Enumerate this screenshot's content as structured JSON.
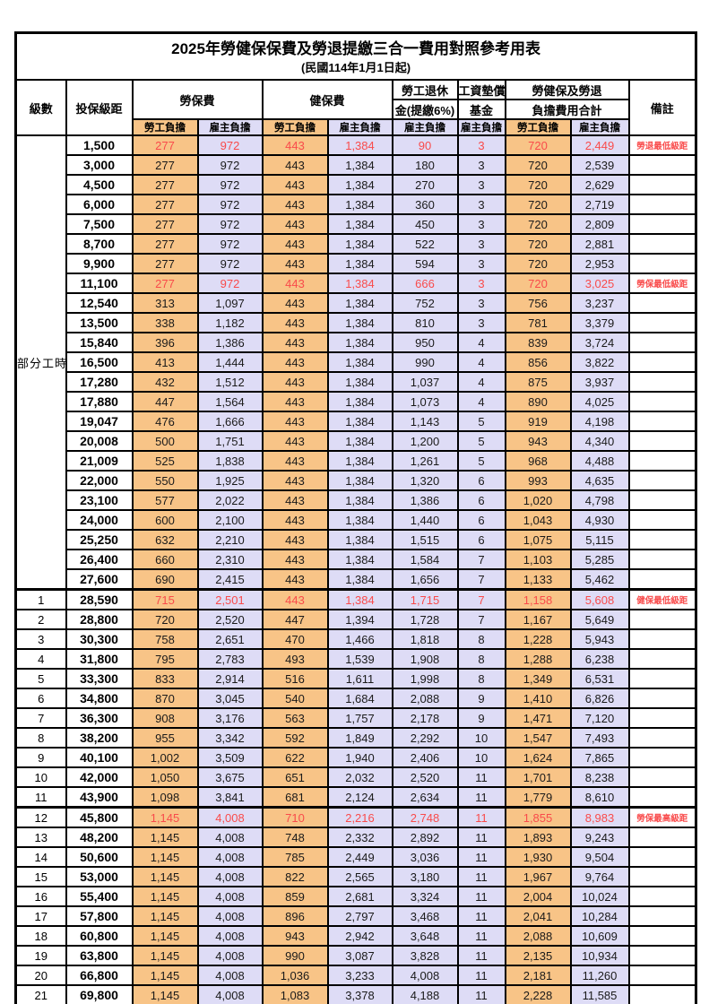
{
  "title": "2025年勞健保保費及勞退提繳三合一費用對照參考用表",
  "subtitle": "(民國114年1月1日起)",
  "header": {
    "level": "級數",
    "bracket": "投保級距",
    "labor": "勞保費",
    "health": "健保費",
    "pension_line1": "勞工退休",
    "pension_line2": "金(提繳6%)",
    "wage_fund_line1": "工資墊償",
    "wage_fund_line2": "基金",
    "total_line1": "勞健保及勞退",
    "total_line2": "負擔費用合計",
    "remark": "備註",
    "employee": "勞工負擔",
    "employer": "雇主負擔"
  },
  "part_time": {
    "label": "部分工時",
    "rowspan": 23
  },
  "colors": {
    "employee_bg": "#F8C487",
    "employer_bg": "#DEDCF6",
    "highlight_red": "#F94B4B",
    "border": "#000000"
  },
  "rows": [
    {
      "level": "",
      "salary": "1,500",
      "values": [
        "277",
        "972",
        "443",
        "1,384",
        "90",
        "3",
        "720",
        "2,449"
      ],
      "note": "勞退最低級距",
      "red": true,
      "thick": false
    },
    {
      "level": "",
      "salary": "3,000",
      "values": [
        "277",
        "972",
        "443",
        "1,384",
        "180",
        "3",
        "720",
        "2,539"
      ],
      "note": "",
      "red": false,
      "thick": false
    },
    {
      "level": "",
      "salary": "4,500",
      "values": [
        "277",
        "972",
        "443",
        "1,384",
        "270",
        "3",
        "720",
        "2,629"
      ],
      "note": "",
      "red": false,
      "thick": false
    },
    {
      "level": "",
      "salary": "6,000",
      "values": [
        "277",
        "972",
        "443",
        "1,384",
        "360",
        "3",
        "720",
        "2,719"
      ],
      "note": "",
      "red": false,
      "thick": false
    },
    {
      "level": "",
      "salary": "7,500",
      "values": [
        "277",
        "972",
        "443",
        "1,384",
        "450",
        "3",
        "720",
        "2,809"
      ],
      "note": "",
      "red": false,
      "thick": false
    },
    {
      "level": "",
      "salary": "8,700",
      "values": [
        "277",
        "972",
        "443",
        "1,384",
        "522",
        "3",
        "720",
        "2,881"
      ],
      "note": "",
      "red": false,
      "thick": false
    },
    {
      "level": "",
      "salary": "9,900",
      "values": [
        "277",
        "972",
        "443",
        "1,384",
        "594",
        "3",
        "720",
        "2,953"
      ],
      "note": "",
      "red": false,
      "thick": false
    },
    {
      "level": "",
      "salary": "11,100",
      "values": [
        "277",
        "972",
        "443",
        "1,384",
        "666",
        "3",
        "720",
        "3,025"
      ],
      "note": "勞保最低級距",
      "red": true,
      "thick": false
    },
    {
      "level": "",
      "salary": "12,540",
      "values": [
        "313",
        "1,097",
        "443",
        "1,384",
        "752",
        "3",
        "756",
        "3,237"
      ],
      "note": "",
      "red": false,
      "thick": false
    },
    {
      "level": "",
      "salary": "13,500",
      "values": [
        "338",
        "1,182",
        "443",
        "1,384",
        "810",
        "3",
        "781",
        "3,379"
      ],
      "note": "",
      "red": false,
      "thick": false
    },
    {
      "level": "",
      "salary": "15,840",
      "values": [
        "396",
        "1,386",
        "443",
        "1,384",
        "950",
        "4",
        "839",
        "3,724"
      ],
      "note": "",
      "red": false,
      "thick": false
    },
    {
      "level": "",
      "salary": "16,500",
      "values": [
        "413",
        "1,444",
        "443",
        "1,384",
        "990",
        "4",
        "856",
        "3,822"
      ],
      "note": "",
      "red": false,
      "thick": false
    },
    {
      "level": "",
      "salary": "17,280",
      "values": [
        "432",
        "1,512",
        "443",
        "1,384",
        "1,037",
        "4",
        "875",
        "3,937"
      ],
      "note": "",
      "red": false,
      "thick": false
    },
    {
      "level": "",
      "salary": "17,880",
      "values": [
        "447",
        "1,564",
        "443",
        "1,384",
        "1,073",
        "4",
        "890",
        "4,025"
      ],
      "note": "",
      "red": false,
      "thick": false
    },
    {
      "level": "",
      "salary": "19,047",
      "values": [
        "476",
        "1,666",
        "443",
        "1,384",
        "1,143",
        "5",
        "919",
        "4,198"
      ],
      "note": "",
      "red": false,
      "thick": false
    },
    {
      "level": "",
      "salary": "20,008",
      "values": [
        "500",
        "1,751",
        "443",
        "1,384",
        "1,200",
        "5",
        "943",
        "4,340"
      ],
      "note": "",
      "red": false,
      "thick": false
    },
    {
      "level": "",
      "salary": "21,009",
      "values": [
        "525",
        "1,838",
        "443",
        "1,384",
        "1,261",
        "5",
        "968",
        "4,488"
      ],
      "note": "",
      "red": false,
      "thick": false
    },
    {
      "level": "",
      "salary": "22,000",
      "values": [
        "550",
        "1,925",
        "443",
        "1,384",
        "1,320",
        "6",
        "993",
        "4,635"
      ],
      "note": "",
      "red": false,
      "thick": false
    },
    {
      "level": "",
      "salary": "23,100",
      "values": [
        "577",
        "2,022",
        "443",
        "1,384",
        "1,386",
        "6",
        "1,020",
        "4,798"
      ],
      "note": "",
      "red": false,
      "thick": false
    },
    {
      "level": "",
      "salary": "24,000",
      "values": [
        "600",
        "2,100",
        "443",
        "1,384",
        "1,440",
        "6",
        "1,043",
        "4,930"
      ],
      "note": "",
      "red": false,
      "thick": false
    },
    {
      "level": "",
      "salary": "25,250",
      "values": [
        "632",
        "2,210",
        "443",
        "1,384",
        "1,515",
        "6",
        "1,075",
        "5,115"
      ],
      "note": "",
      "red": false,
      "thick": false
    },
    {
      "level": "",
      "salary": "26,400",
      "values": [
        "660",
        "2,310",
        "443",
        "1,384",
        "1,584",
        "7",
        "1,103",
        "5,285"
      ],
      "note": "",
      "red": false,
      "thick": false
    },
    {
      "level": "",
      "salary": "27,600",
      "values": [
        "690",
        "2,415",
        "443",
        "1,384",
        "1,656",
        "7",
        "1,133",
        "5,462"
      ],
      "note": "",
      "red": false,
      "thick": false
    },
    {
      "level": "1",
      "salary": "28,590",
      "values": [
        "715",
        "2,501",
        "443",
        "1,384",
        "1,715",
        "7",
        "1,158",
        "5,608"
      ],
      "note": "健保最低級距",
      "red": true,
      "thick": true
    },
    {
      "level": "2",
      "salary": "28,800",
      "values": [
        "720",
        "2,520",
        "447",
        "1,394",
        "1,728",
        "7",
        "1,167",
        "5,649"
      ],
      "note": "",
      "red": false,
      "thick": false
    },
    {
      "level": "3",
      "salary": "30,300",
      "values": [
        "758",
        "2,651",
        "470",
        "1,466",
        "1,818",
        "8",
        "1,228",
        "5,943"
      ],
      "note": "",
      "red": false,
      "thick": false
    },
    {
      "level": "4",
      "salary": "31,800",
      "values": [
        "795",
        "2,783",
        "493",
        "1,539",
        "1,908",
        "8",
        "1,288",
        "6,238"
      ],
      "note": "",
      "red": false,
      "thick": false
    },
    {
      "level": "5",
      "salary": "33,300",
      "values": [
        "833",
        "2,914",
        "516",
        "1,611",
        "1,998",
        "8",
        "1,349",
        "6,531"
      ],
      "note": "",
      "red": false,
      "thick": false
    },
    {
      "level": "6",
      "salary": "34,800",
      "values": [
        "870",
        "3,045",
        "540",
        "1,684",
        "2,088",
        "9",
        "1,410",
        "6,826"
      ],
      "note": "",
      "red": false,
      "thick": false
    },
    {
      "level": "7",
      "salary": "36,300",
      "values": [
        "908",
        "3,176",
        "563",
        "1,757",
        "2,178",
        "9",
        "1,471",
        "7,120"
      ],
      "note": "",
      "red": false,
      "thick": false
    },
    {
      "level": "8",
      "salary": "38,200",
      "values": [
        "955",
        "3,342",
        "592",
        "1,849",
        "2,292",
        "10",
        "1,547",
        "7,493"
      ],
      "note": "",
      "red": false,
      "thick": false
    },
    {
      "level": "9",
      "salary": "40,100",
      "values": [
        "1,002",
        "3,509",
        "622",
        "1,940",
        "2,406",
        "10",
        "1,624",
        "7,865"
      ],
      "note": "",
      "red": false,
      "thick": false
    },
    {
      "level": "10",
      "salary": "42,000",
      "values": [
        "1,050",
        "3,675",
        "651",
        "2,032",
        "2,520",
        "11",
        "1,701",
        "8,238"
      ],
      "note": "",
      "red": false,
      "thick": false
    },
    {
      "level": "11",
      "salary": "43,900",
      "values": [
        "1,098",
        "3,841",
        "681",
        "2,124",
        "2,634",
        "11",
        "1,779",
        "8,610"
      ],
      "note": "",
      "red": false,
      "thick": false
    },
    {
      "level": "12",
      "salary": "45,800",
      "values": [
        "1,145",
        "4,008",
        "710",
        "2,216",
        "2,748",
        "11",
        "1,855",
        "8,983"
      ],
      "note": "勞保最高級距",
      "red": true,
      "thick": true
    },
    {
      "level": "13",
      "salary": "48,200",
      "values": [
        "1,145",
        "4,008",
        "748",
        "2,332",
        "2,892",
        "11",
        "1,893",
        "9,243"
      ],
      "note": "",
      "red": false,
      "thick": false
    },
    {
      "level": "14",
      "salary": "50,600",
      "values": [
        "1,145",
        "4,008",
        "785",
        "2,449",
        "3,036",
        "11",
        "1,930",
        "9,504"
      ],
      "note": "",
      "red": false,
      "thick": false
    },
    {
      "level": "15",
      "salary": "53,000",
      "values": [
        "1,145",
        "4,008",
        "822",
        "2,565",
        "3,180",
        "11",
        "1,967",
        "9,764"
      ],
      "note": "",
      "red": false,
      "thick": false
    },
    {
      "level": "16",
      "salary": "55,400",
      "values": [
        "1,145",
        "4,008",
        "859",
        "2,681",
        "3,324",
        "11",
        "2,004",
        "10,024"
      ],
      "note": "",
      "red": false,
      "thick": false
    },
    {
      "level": "17",
      "salary": "57,800",
      "values": [
        "1,145",
        "4,008",
        "896",
        "2,797",
        "3,468",
        "11",
        "2,041",
        "10,284"
      ],
      "note": "",
      "red": false,
      "thick": false
    },
    {
      "level": "18",
      "salary": "60,800",
      "values": [
        "1,145",
        "4,008",
        "943",
        "2,942",
        "3,648",
        "11",
        "2,088",
        "10,609"
      ],
      "note": "",
      "red": false,
      "thick": false
    },
    {
      "level": "19",
      "salary": "63,800",
      "values": [
        "1,145",
        "4,008",
        "990",
        "3,087",
        "3,828",
        "11",
        "2,135",
        "10,934"
      ],
      "note": "",
      "red": false,
      "thick": false
    },
    {
      "level": "20",
      "salary": "66,800",
      "values": [
        "1,145",
        "4,008",
        "1,036",
        "3,233",
        "4,008",
        "11",
        "2,181",
        "11,260"
      ],
      "note": "",
      "red": false,
      "thick": false
    },
    {
      "level": "21",
      "salary": "69,800",
      "values": [
        "1,145",
        "4,008",
        "1,083",
        "3,378",
        "4,188",
        "11",
        "2,228",
        "11,585"
      ],
      "note": "",
      "red": false,
      "thick": false
    }
  ]
}
